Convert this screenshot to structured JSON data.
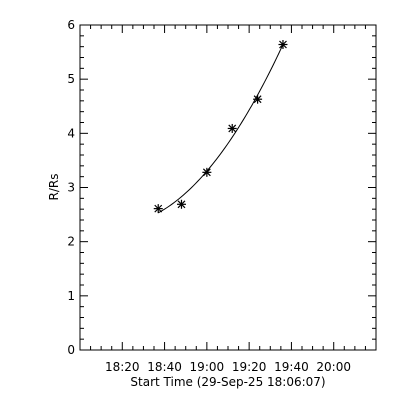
{
  "chart_data": {
    "type": "scatter",
    "title": "",
    "xlabel": "Start Time (29-Sep-25 18:06:07)",
    "ylabel": "R/Rs",
    "x_tick_labels": [
      "18:20",
      "18:40",
      "19:00",
      "19:20",
      "19:40",
      "20:00"
    ],
    "x_tick_minutes": [
      20,
      40,
      60,
      80,
      100,
      120
    ],
    "y_tick_labels": [
      "0",
      "1",
      "2",
      "3",
      "4",
      "5",
      "6"
    ],
    "y_tick_values": [
      0,
      1,
      2,
      3,
      4,
      5,
      6
    ],
    "xlim_minutes": [
      0,
      140
    ],
    "ylim": [
      0,
      6
    ],
    "grid": false,
    "series": [
      {
        "marker": "asterisk",
        "points": [
          {
            "t": "18:37",
            "x_min": 37,
            "y": 2.61
          },
          {
            "t": "18:48",
            "x_min": 48,
            "y": 2.69
          },
          {
            "t": "19:00",
            "x_min": 60,
            "y": 3.28
          },
          {
            "t": "19:12",
            "x_min": 72,
            "y": 4.09
          },
          {
            "t": "19:24",
            "x_min": 84,
            "y": 4.63
          },
          {
            "t": "19:36",
            "x_min": 96,
            "y": 5.64
          }
        ]
      }
    ],
    "fit_curve": {
      "type": "quadratic",
      "x_range_minutes": [
        37,
        96
      ]
    }
  }
}
